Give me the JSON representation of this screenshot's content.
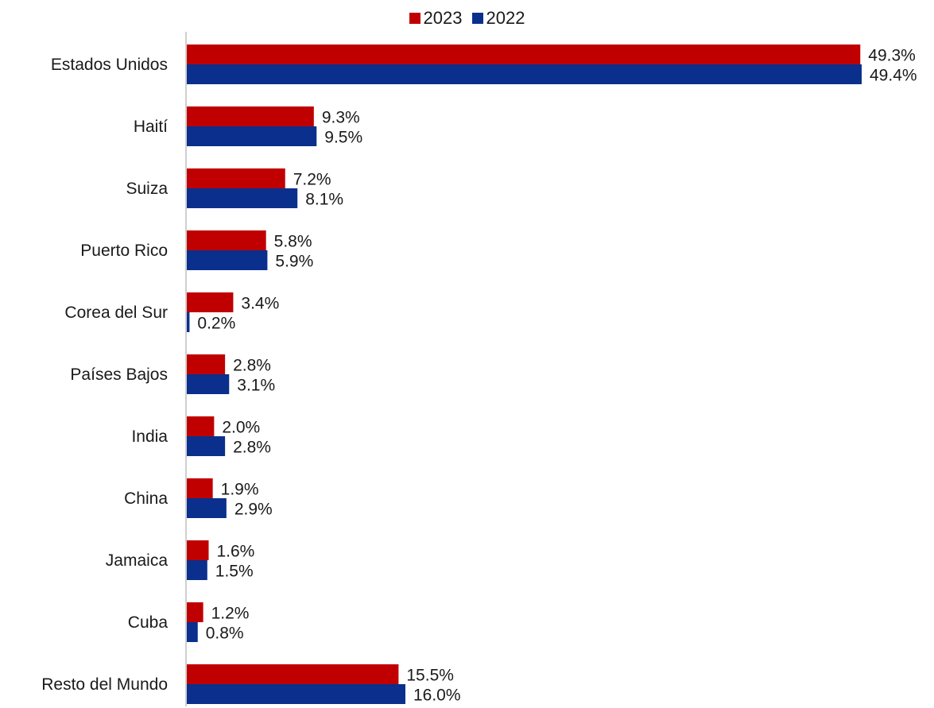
{
  "chart_data": {
    "type": "bar",
    "orientation": "horizontal",
    "categories": [
      "Estados Unidos",
      "Haití",
      "Suiza",
      "Puerto Rico",
      "Corea del Sur",
      "Países Bajos",
      "India",
      "China",
      "Jamaica",
      "Cuba",
      "Resto del Mundo"
    ],
    "series": [
      {
        "name": "2023",
        "color": "#c00000",
        "values": [
          49.3,
          9.3,
          7.2,
          5.8,
          3.4,
          2.8,
          2.0,
          1.9,
          1.6,
          1.2,
          15.5
        ],
        "labels": [
          "49.3%",
          "9.3%",
          "7.2%",
          "5.8%",
          "3.4%",
          "2.8%",
          "2.0%",
          "1.9%",
          "1.6%",
          "1.2%",
          "15.5%"
        ]
      },
      {
        "name": "2022",
        "color": "#0a2f8c",
        "values": [
          49.4,
          9.5,
          8.1,
          5.9,
          0.2,
          3.1,
          2.8,
          2.9,
          1.5,
          0.8,
          16.0
        ],
        "labels": [
          "49.4%",
          "9.5%",
          "8.1%",
          "5.9%",
          "0.2%",
          "3.1%",
          "2.8%",
          "2.9%",
          "1.5%",
          "0.8%",
          "16.0%"
        ]
      }
    ],
    "xlim": [
      0,
      49.4
    ],
    "grid": false,
    "legend_position": "top-center",
    "title": "",
    "xlabel": "",
    "ylabel": ""
  }
}
